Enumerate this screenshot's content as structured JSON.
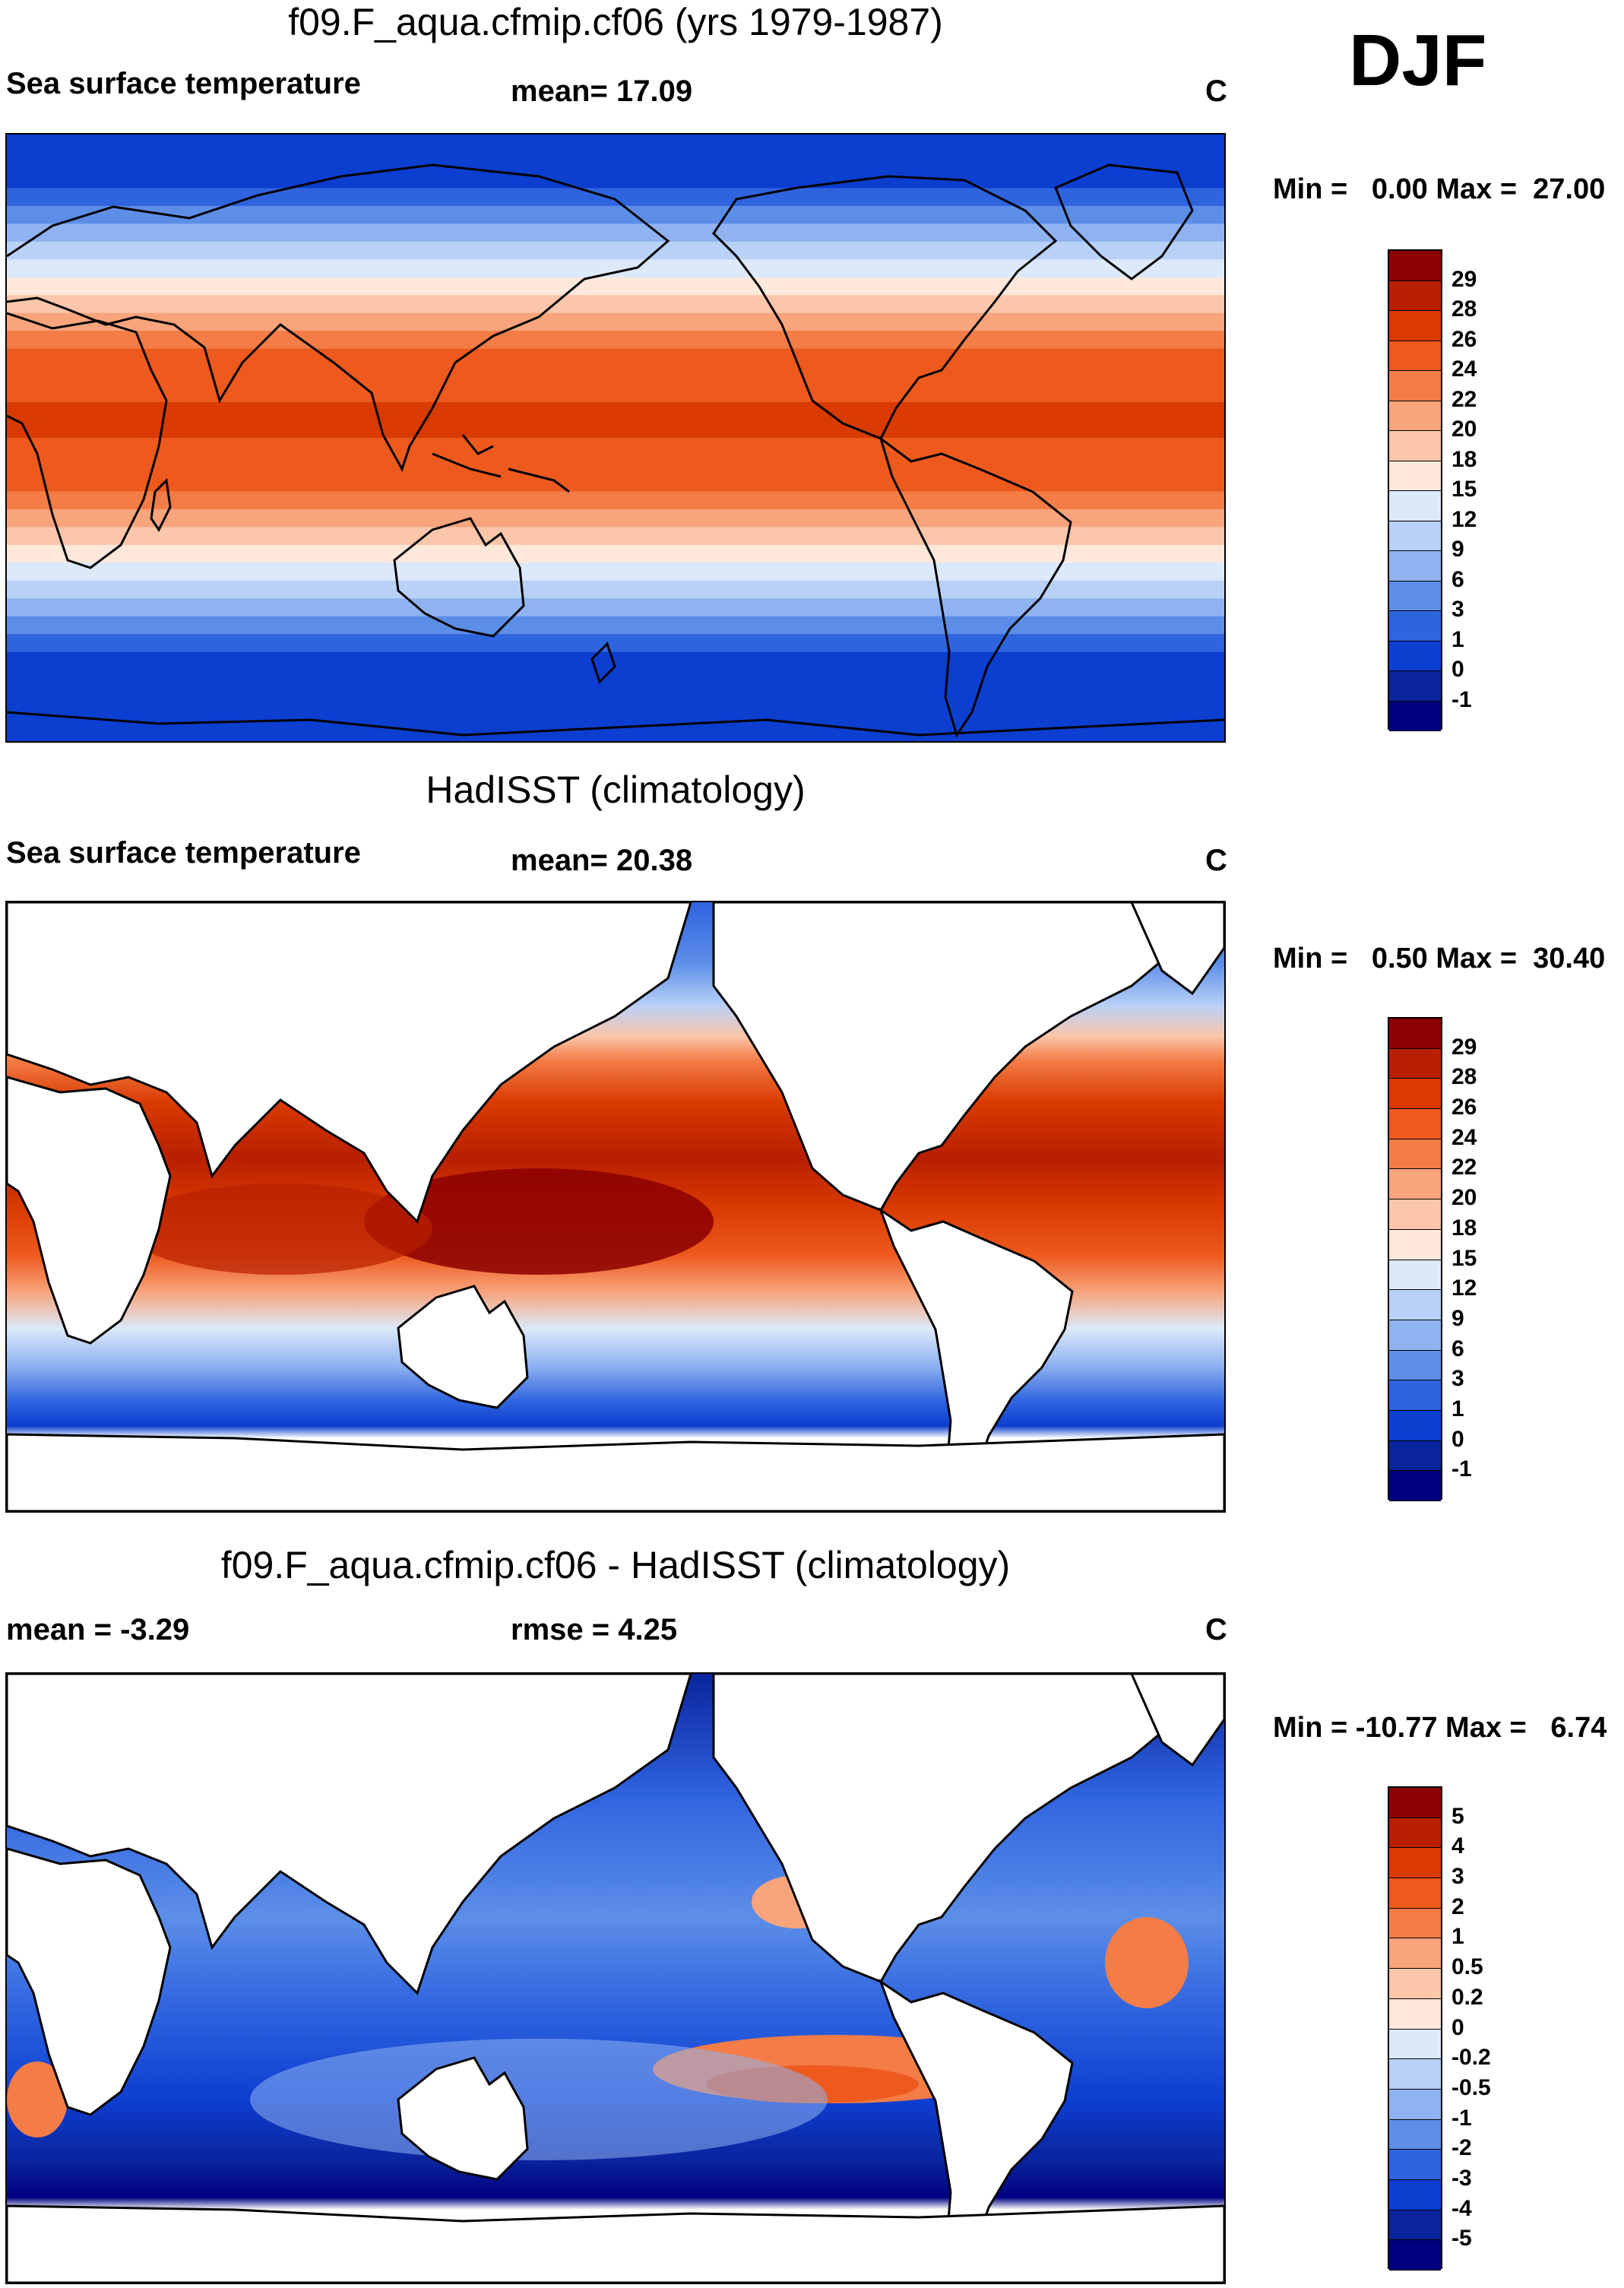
{
  "season": "DJF",
  "panels": [
    {
      "title": "f09.F_aqua.cfmip.cf06 (yrs 1979-1987)",
      "left_label": "Sea surface temperature",
      "mid_label": "mean=  17.09",
      "units": "C",
      "minmax": "Min =   0.00 Max =  27.00"
    },
    {
      "title": "HadISST (climatology)",
      "left_label": "Sea surface temperature",
      "mid_label": "mean=  20.38",
      "units": "C",
      "minmax": "Min =   0.50 Max =  30.40"
    },
    {
      "title": "f09.F_aqua.cfmip.cf06 - HadISST (climatology)",
      "left_label": "mean =  -3.29",
      "mid_label": "rmse =   4.25",
      "units": "C",
      "minmax": "Min = -10.77 Max =   6.74"
    }
  ],
  "chart_data": [
    {
      "type": "heatmap",
      "title": "f09.F_aqua.cfmip.cf06 (yrs 1979-1987)",
      "variable": "Sea surface temperature",
      "units": "C",
      "mean": 17.09,
      "min": 0.0,
      "max": 27.0,
      "colorbar_levels": [
        "29",
        "28",
        "26",
        "24",
        "22",
        "20",
        "18",
        "15",
        "12",
        "9",
        "6",
        "3",
        "1",
        "0",
        "-1"
      ],
      "colorbar_colors": [
        "#8b0000",
        "#b81f00",
        "#d83a00",
        "#ee5a1e",
        "#f47c46",
        "#f8a47c",
        "#fbc6aa",
        "#fde8db",
        "#dce9fa",
        "#b9d1f7",
        "#8fb3f1",
        "#5c8ee8",
        "#2f64df",
        "#0c3ed0",
        "#0a249d",
        "#000080"
      ],
      "description": "zonally symmetric aquaplanet SST, warm band at equator"
    },
    {
      "type": "heatmap",
      "title": "HadISST (climatology)",
      "variable": "Sea surface temperature",
      "units": "C",
      "mean": 20.38,
      "min": 0.5,
      "max": 30.4,
      "colorbar_levels": [
        "29",
        "28",
        "26",
        "24",
        "22",
        "20",
        "18",
        "15",
        "12",
        "9",
        "6",
        "3",
        "1",
        "0",
        "-1"
      ],
      "colorbar_colors": [
        "#8b0000",
        "#b81f00",
        "#d83a00",
        "#ee5a1e",
        "#f47c46",
        "#f8a47c",
        "#fbc6aa",
        "#fde8db",
        "#dce9fa",
        "#b9d1f7",
        "#8fb3f1",
        "#5c8ee8",
        "#2f64df",
        "#0c3ed0",
        "#0a249d",
        "#000080"
      ]
    },
    {
      "type": "heatmap",
      "title": "f09.F_aqua.cfmip.cf06 - HadISST (climatology)",
      "units": "C",
      "mean": -3.29,
      "rmse": 4.25,
      "min": -10.77,
      "max": 6.74,
      "colorbar_levels": [
        "5",
        "4",
        "3",
        "2",
        "1",
        "0.5",
        "0.2",
        "0",
        "-0.2",
        "-0.5",
        "-1",
        "-2",
        "-3",
        "-4",
        "-5"
      ],
      "colorbar_colors": [
        "#8b0000",
        "#b81f00",
        "#d83a00",
        "#ee5a1e",
        "#f47c46",
        "#f8a47c",
        "#fbc6aa",
        "#fde8db",
        "#dce9fa",
        "#b9d1f7",
        "#8fb3f1",
        "#5c8ee8",
        "#2f64df",
        "#0c3ed0",
        "#0a249d",
        "#000080"
      ]
    }
  ]
}
